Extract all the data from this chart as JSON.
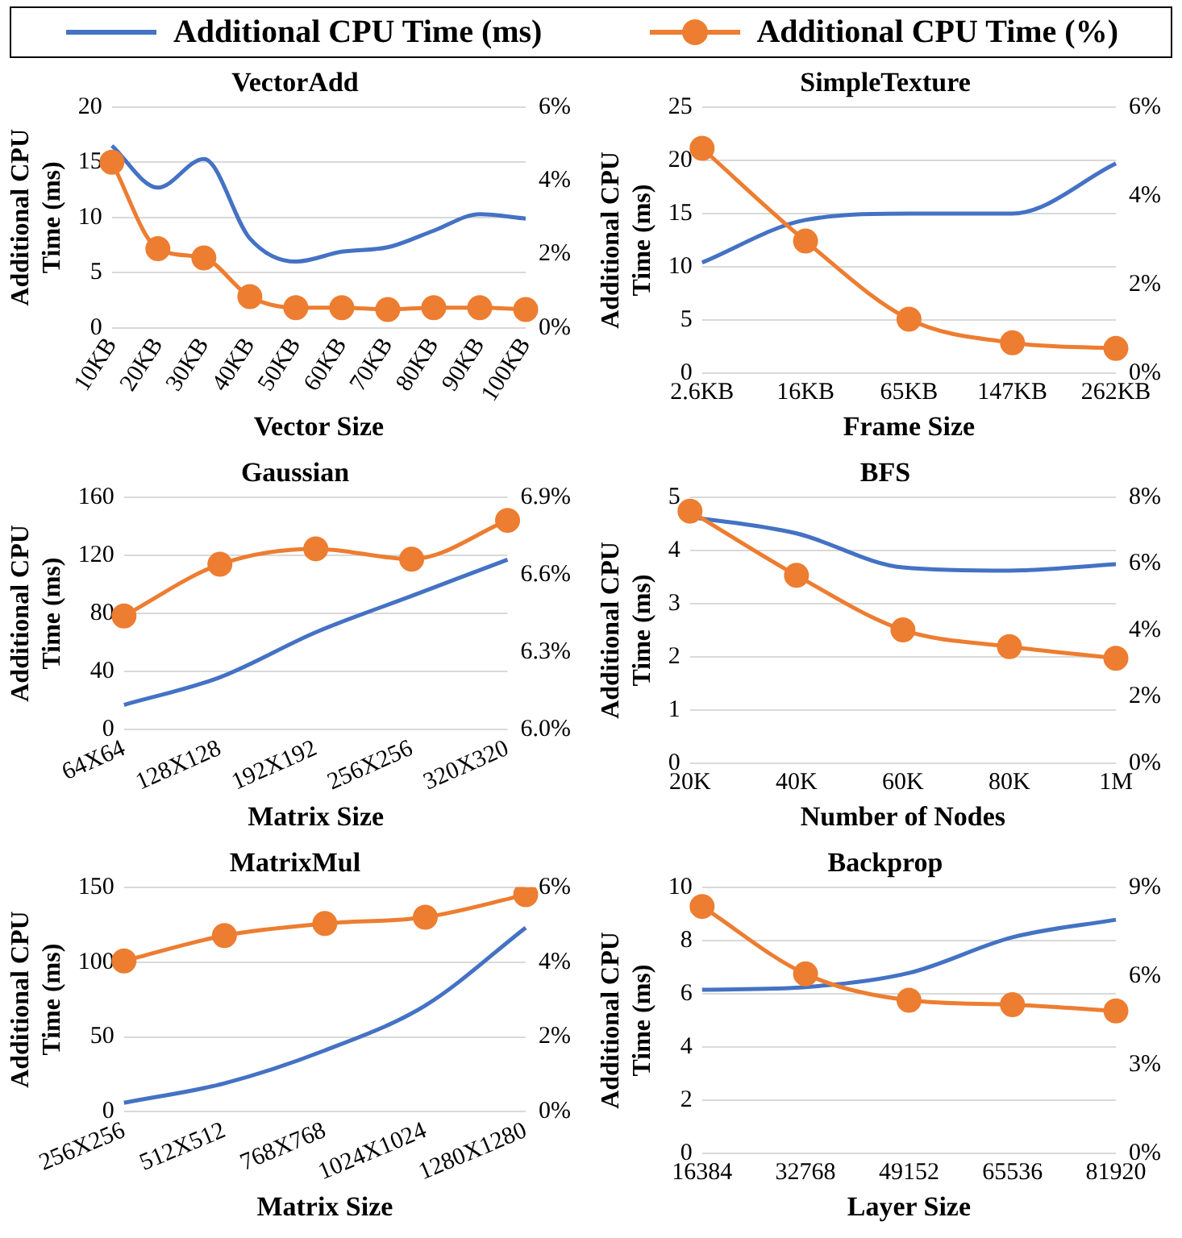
{
  "chart_data": [
    {
      "type": "line",
      "title": "VectorAdd",
      "xlabel": "Vector Size",
      "ylabel": "Additional CPU Time (ms)",
      "legend": "top",
      "grid": "y",
      "categories": [
        "10KB",
        "20KB",
        "30KB",
        "40KB",
        "50KB",
        "60KB",
        "70KB",
        "80KB",
        "90KB",
        "100KB"
      ],
      "ylim": [
        0,
        20
      ],
      "yticks": [
        0,
        5,
        10,
        15,
        20
      ],
      "y2lim": [
        0,
        6
      ],
      "y2ticks": [
        {
          "value": 0,
          "label": "0%"
        },
        {
          "value": 2,
          "label": "2%"
        },
        {
          "value": 4,
          "label": "4%"
        },
        {
          "value": 6,
          "label": "6%"
        }
      ],
      "series": [
        {
          "name": "Additional CPU Time (ms)",
          "color": "#4472c4",
          "marker": "none",
          "values": [
            16.5,
            12.7,
            15.3,
            8.1,
            6.0,
            6.9,
            7.3,
            8.8,
            10.3,
            9.9
          ]
        },
        {
          "name": "Additional CPU Time (%)",
          "color": "#ed7d31",
          "marker": "circle",
          "axis": "y2",
          "values": [
            4.5,
            2.15,
            1.9,
            0.85,
            0.55,
            0.55,
            0.5,
            0.55,
            0.55,
            0.5
          ]
        }
      ]
    },
    {
      "type": "line",
      "title": "SimpleTexture",
      "xlabel": "Frame Size",
      "ylabel": "Additional CPU Time (ms)",
      "grid": "y",
      "categories": [
        "2.6KB",
        "16KB",
        "65KB",
        "147KB",
        "262KB"
      ],
      "ylim": [
        0,
        25
      ],
      "yticks": [
        0,
        5,
        10,
        15,
        20,
        25
      ],
      "y2lim": [
        0,
        6
      ],
      "y2ticks": [
        {
          "value": 0,
          "label": "0%"
        },
        {
          "value": 2,
          "label": "2%"
        },
        {
          "value": 4,
          "label": "4%"
        },
        {
          "value": 6,
          "label": "6%"
        }
      ],
      "series": [
        {
          "color": "#4472c4",
          "marker": "none",
          "values": [
            10.4,
            14.4,
            15.0,
            15.0,
            19.7
          ]
        },
        {
          "color": "#ed7d31",
          "marker": "circle",
          "axis": "y2",
          "values": [
            5.07,
            2.98,
            1.22,
            0.69,
            0.56
          ]
        }
      ]
    },
    {
      "type": "line",
      "title": "Gaussian",
      "xlabel": "Matrix Size",
      "ylabel": "Additional CPU Time (ms)",
      "grid": "y",
      "categories": [
        "64X64",
        "128X128",
        "192X192",
        "256X256",
        "320X320"
      ],
      "ylim": [
        0,
        160
      ],
      "yticks": [
        0,
        40,
        80,
        120,
        160
      ],
      "y2lim": [
        6.0,
        6.9
      ],
      "y2ticks": [
        {
          "value": 6.0,
          "label": "6.0%"
        },
        {
          "value": 6.3,
          "label": "6.3%"
        },
        {
          "value": 6.6,
          "label": "6.6%"
        },
        {
          "value": 6.9,
          "label": "6.9%"
        }
      ],
      "series": [
        {
          "color": "#4472c4",
          "marker": "none",
          "values": [
            17,
            36,
            67,
            92,
            117
          ]
        },
        {
          "color": "#ed7d31",
          "marker": "circle",
          "axis": "y2",
          "values": [
            6.44,
            6.64,
            6.7,
            6.66,
            6.81
          ]
        }
      ]
    },
    {
      "type": "line",
      "title": "BFS",
      "xlabel": "Number of Nodes",
      "ylabel": "Additional CPU Time (ms)",
      "grid": "y",
      "categories": [
        "20K",
        "40K",
        "60K",
        "80K",
        "1M"
      ],
      "ylim": [
        0,
        5
      ],
      "yticks": [
        0,
        1,
        2,
        3,
        4,
        5
      ],
      "y2lim": [
        0,
        8
      ],
      "y2ticks": [
        {
          "value": 0,
          "label": "0%"
        },
        {
          "value": 2,
          "label": "2%"
        },
        {
          "value": 4,
          "label": "4%"
        },
        {
          "value": 6,
          "label": "6%"
        },
        {
          "value": 8,
          "label": "8%"
        }
      ],
      "series": [
        {
          "color": "#4472c4",
          "marker": "none",
          "values": [
            4.63,
            4.32,
            3.68,
            3.62,
            3.74
          ]
        },
        {
          "color": "#ed7d31",
          "marker": "circle",
          "axis": "y2",
          "values": [
            7.58,
            5.65,
            4.01,
            3.51,
            3.16
          ]
        }
      ]
    },
    {
      "type": "line",
      "title": "MatrixMul",
      "xlabel": "Matrix Size",
      "ylabel": "Additional CPU Time (ms)",
      "grid": "y",
      "categories": [
        "256X256",
        "512X512",
        "768X768",
        "1024X1024",
        "1280X1280"
      ],
      "ylim": [
        0,
        150
      ],
      "yticks": [
        0,
        50,
        100,
        150
      ],
      "y2lim": [
        0,
        6
      ],
      "y2ticks": [
        {
          "value": 0,
          "label": "0%"
        },
        {
          "value": 2,
          "label": "2%"
        },
        {
          "value": 4,
          "label": "4%"
        },
        {
          "value": 6,
          "label": "6%"
        }
      ],
      "series": [
        {
          "color": "#4472c4",
          "marker": "none",
          "values": [
            6,
            19,
            41,
            71,
            123
          ]
        },
        {
          "color": "#ed7d31",
          "marker": "circle",
          "axis": "y2",
          "values": [
            4.03,
            4.71,
            5.03,
            5.2,
            5.8
          ]
        }
      ]
    },
    {
      "type": "line",
      "title": "Backprop",
      "xlabel": "Layer Size",
      "ylabel": "Additional CPU Time (ms)",
      "grid": "y",
      "categories": [
        "16384",
        "32768",
        "49152",
        "65536",
        "81920"
      ],
      "ylim": [
        0,
        10
      ],
      "yticks": [
        0,
        2,
        4,
        6,
        8,
        10
      ],
      "y2lim": [
        0,
        9
      ],
      "y2ticks": [
        {
          "value": 0,
          "label": "0%"
        },
        {
          "value": 3,
          "label": "3%"
        },
        {
          "value": 6,
          "label": "6%"
        },
        {
          "value": 9,
          "label": "9%"
        }
      ],
      "series": [
        {
          "color": "#4472c4",
          "marker": "none",
          "values": [
            6.15,
            6.25,
            6.78,
            8.12,
            8.78
          ]
        },
        {
          "color": "#ed7d31",
          "marker": "circle",
          "axis": "y2",
          "values": [
            8.35,
            6.07,
            5.18,
            5.03,
            4.82
          ]
        }
      ]
    }
  ]
}
